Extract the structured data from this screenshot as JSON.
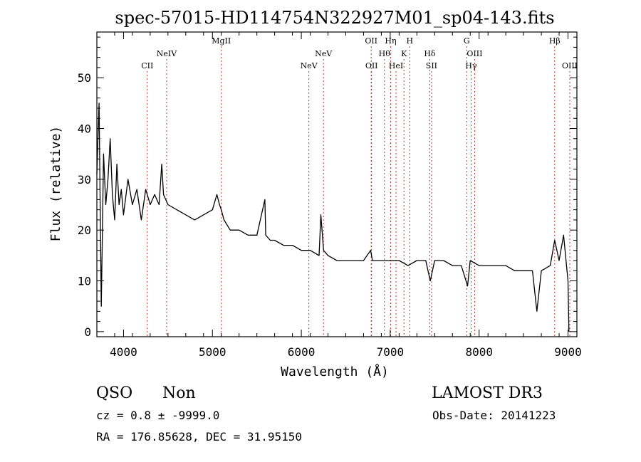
{
  "chart_data": {
    "type": "line",
    "title": "spec-57015-HD114754N322927M01_sp04-143.fits",
    "xlabel": "Wavelength (Å)",
    "ylabel": "Flux (relative)",
    "xlim": [
      3700,
      9100
    ],
    "ylim": [
      -1,
      59
    ],
    "x_ticks": [
      4000,
      5000,
      6000,
      7000,
      8000,
      9000
    ],
    "y_ticks": [
      0,
      10,
      20,
      30,
      40,
      50
    ],
    "grid": false,
    "series": [
      {
        "x": [
          3700,
          3725,
          3750,
          3775,
          3800,
          3825,
          3850,
          3875,
          3900,
          3925,
          3950,
          3975,
          4000,
          4050,
          4100,
          4150,
          4200,
          4250,
          4300,
          4350,
          4400,
          4430,
          4450,
          4500,
          4600,
          4700,
          4800,
          4900,
          5000,
          5050,
          5080,
          5100,
          5130,
          5200,
          5300,
          5400,
          5500,
          5590,
          5600,
          5650,
          5700,
          5800,
          5900,
          6000,
          6100,
          6200,
          6220,
          6250,
          6300,
          6400,
          6500,
          6600,
          6700,
          6780,
          6800,
          6900,
          7000,
          7100,
          7200,
          7300,
          7400,
          7450,
          7500,
          7600,
          7700,
          7800,
          7870,
          7900,
          8000,
          8100,
          8200,
          8300,
          8400,
          8500,
          8600,
          8650,
          8700,
          8800,
          8850,
          8900,
          8950,
          9000,
          9010
        ],
        "y": [
          31,
          45,
          5,
          35,
          25,
          30,
          38,
          27,
          22,
          33,
          25,
          28,
          23,
          30,
          25,
          28,
          22,
          28,
          25,
          27,
          25,
          33,
          27,
          25,
          24,
          23,
          22,
          23,
          24,
          27,
          25,
          24,
          22,
          20,
          20,
          19,
          19,
          26,
          19,
          18,
          18,
          17,
          17,
          16,
          16,
          15,
          23,
          16,
          15,
          14,
          14,
          14,
          14,
          16,
          14,
          14,
          14,
          14,
          13,
          14,
          14,
          10,
          14,
          14,
          13,
          13,
          9,
          14,
          13,
          13,
          13,
          13,
          12,
          12,
          12,
          4,
          12,
          13,
          18,
          14,
          19,
          10,
          0
        ]
      }
    ],
    "lines": [
      {
        "label": "CII",
        "x": 4267,
        "row": 2
      },
      {
        "label": "NeIV",
        "x": 4485,
        "row": 1
      },
      {
        "label": "MgII",
        "x": 5100,
        "row": 0
      },
      {
        "label": "NeV",
        "x": 6085,
        "row": 2
      },
      {
        "label": "NeV",
        "x": 6249,
        "row": 1
      },
      {
        "label": "OII",
        "x": 6786,
        "row": 0
      },
      {
        "label": "OII",
        "x": 6790,
        "row": 2
      },
      {
        "label": "Hθ",
        "x": 6935,
        "row": 1
      },
      {
        "label": "Hη",
        "x": 7005,
        "row": 0
      },
      {
        "label": "HeI",
        "x": 7065,
        "row": 2
      },
      {
        "label": "K",
        "x": 7155,
        "row": 1
      },
      {
        "label": "H",
        "x": 7220,
        "row": 0
      },
      {
        "label": "Hδ",
        "x": 7445,
        "row": 1
      },
      {
        "label": "SII",
        "x": 7465,
        "row": 2
      },
      {
        "label": "G",
        "x": 7860,
        "row": 0
      },
      {
        "label": "Hγ",
        "x": 7910,
        "row": 2
      },
      {
        "label": "OIII",
        "x": 7950,
        "row": 1
      },
      {
        "label": "Hβ",
        "x": 8850,
        "row": 0
      },
      {
        "label": "OIII",
        "x": 9020,
        "row": 2
      }
    ]
  },
  "footer": {
    "class_label": "QSO",
    "subclass_label": "Non",
    "survey_label": "LAMOST DR3",
    "redshift_text": "cz =  0.8 ± -9999.0",
    "obs_date_text": "Obs-Date: 20141223",
    "coords_text": "RA = 176.85628, DEC =  31.95150"
  }
}
